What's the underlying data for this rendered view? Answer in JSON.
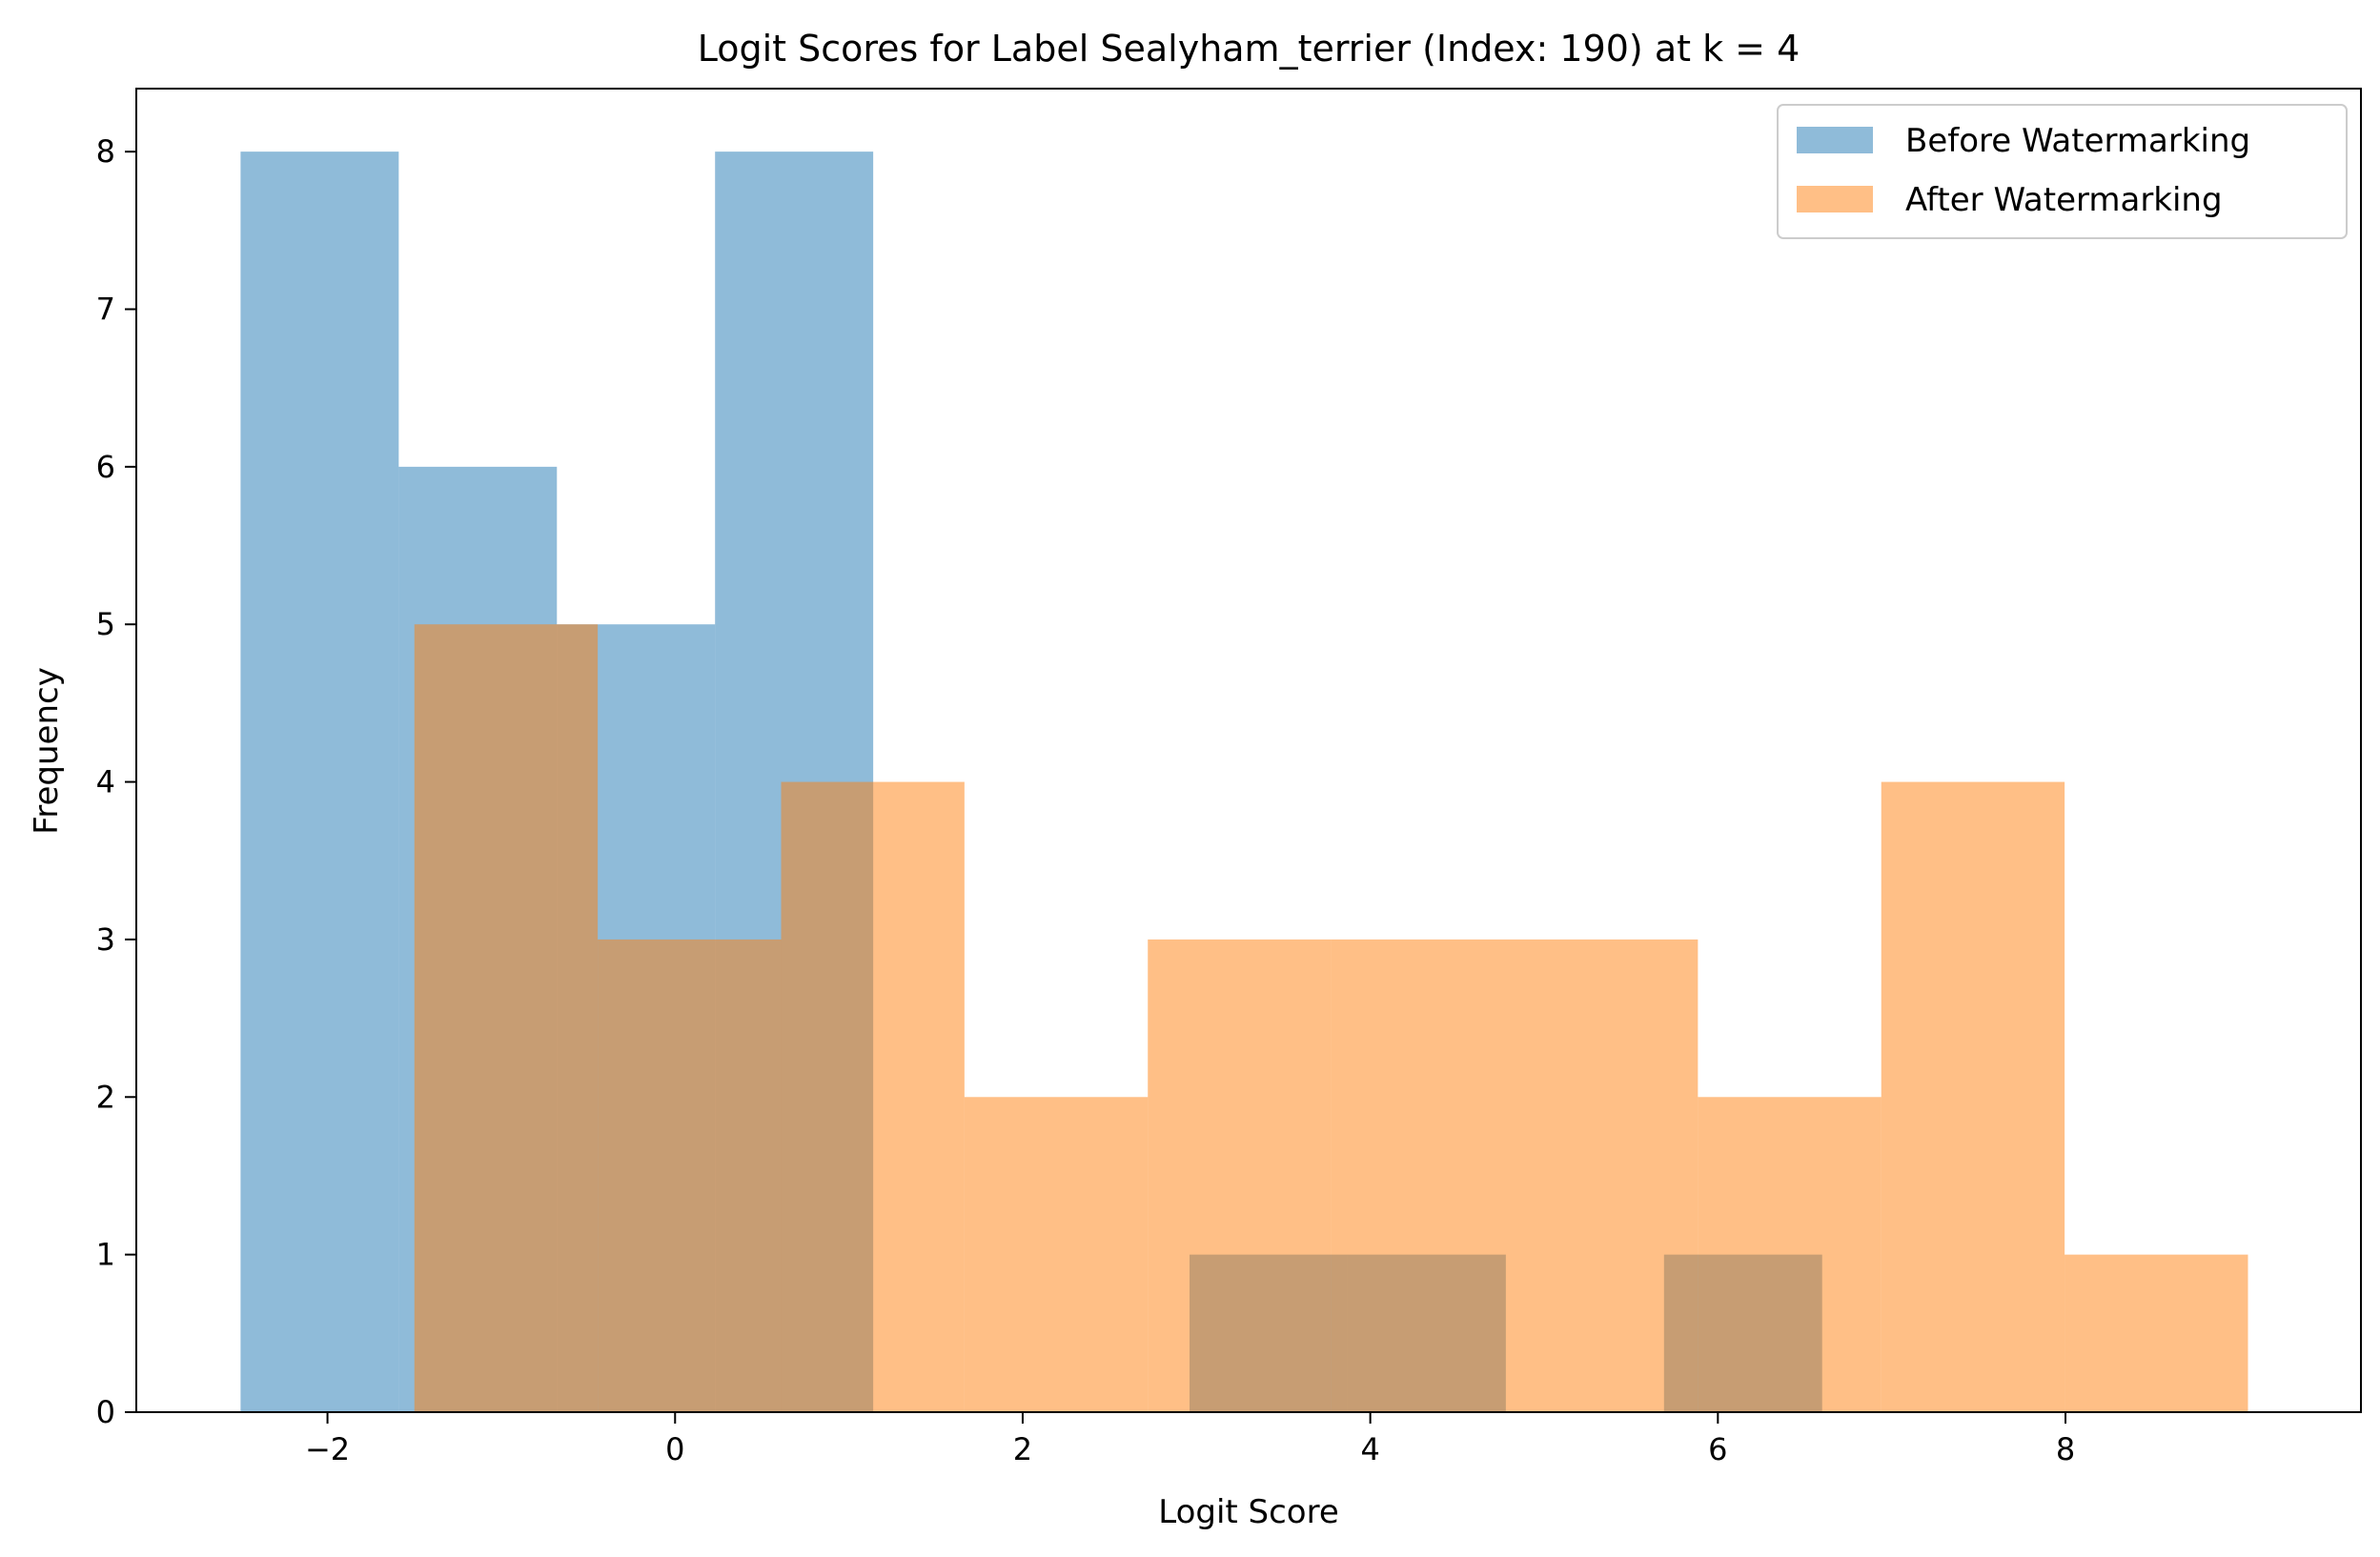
{
  "chart_data": {
    "type": "bar",
    "subtype": "overlapping-histogram",
    "title": "Logit Scores for Label Sealyham_terrier (Index: 190) at k = 4",
    "xlabel": "Logit Score",
    "ylabel": "Frequency",
    "xlim": [
      -3.1,
      9.7
    ],
    "ylim": [
      0,
      8.4
    ],
    "xticks": [
      -2,
      0,
      2,
      4,
      6,
      8
    ],
    "xtick_labels": [
      "−2",
      "0",
      "2",
      "4",
      "6",
      "8"
    ],
    "yticks": [
      0,
      1,
      2,
      3,
      4,
      5,
      6,
      7,
      8
    ],
    "ytick_labels": [
      "0",
      "1",
      "2",
      "3",
      "4",
      "5",
      "6",
      "7",
      "8"
    ],
    "grid": false,
    "legend_position": "top-right",
    "series": [
      {
        "name": "Before Watermarking",
        "color": "#1f77b4",
        "opacity": 0.5,
        "bin_edges": [
          -2.5,
          -1.59,
          -0.68,
          0.23,
          1.14,
          2.05,
          2.96,
          3.87,
          4.78,
          5.69,
          6.6
        ],
        "counts": [
          8,
          6,
          5,
          8,
          0,
          0,
          1,
          1,
          0,
          1
        ]
      },
      {
        "name": "After Watermarking",
        "color": "#ff7f0e",
        "opacity": 0.5,
        "bin_edges": [
          -1.5,
          -0.445,
          0.61,
          1.665,
          2.72,
          3.775,
          4.83,
          5.885,
          6.94,
          7.995,
          9.05
        ],
        "counts": [
          5,
          3,
          4,
          2,
          3,
          3,
          3,
          2,
          4,
          1
        ]
      }
    ]
  }
}
